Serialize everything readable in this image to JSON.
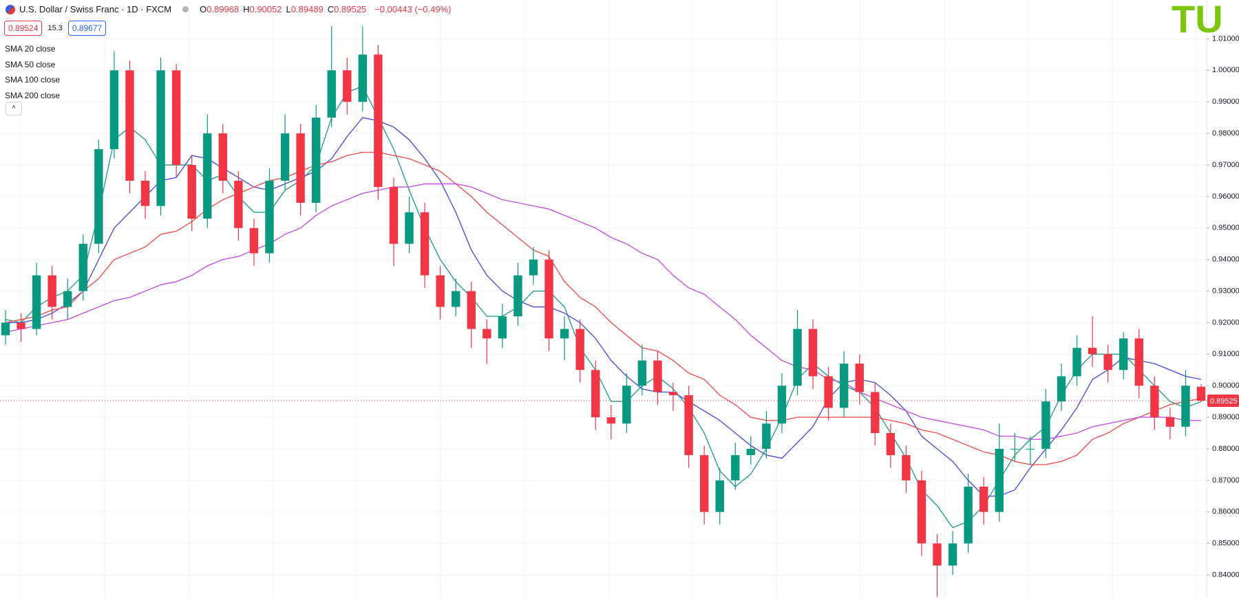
{
  "header": {
    "title": "U.S. Dollar / Swiss Franc · 1D · FXCM",
    "ohlc": [
      {
        "key": "O",
        "value": "0.89968"
      },
      {
        "key": "H",
        "value": "0.90052"
      },
      {
        "key": "L",
        "value": "0.89489"
      },
      {
        "key": "C",
        "value": "0.89525"
      }
    ],
    "change": "−0.00443 (−0.49%)",
    "sell_price": "0.89524",
    "spread": "15.3",
    "buy_price": "0.89677",
    "logo": "TU"
  },
  "chart_data": {
    "type": "candlestick",
    "open": [
      0.916,
      0.92,
      0.918,
      0.935,
      0.925,
      0.93,
      0.945,
      0.975,
      1.0,
      0.965,
      0.957,
      1.0,
      0.97,
      0.953,
      0.98,
      0.965,
      0.95,
      0.942,
      0.965,
      0.98,
      0.958,
      0.985,
      1.0,
      0.99,
      1.005,
      0.963,
      0.945,
      0.955,
      0.935,
      0.925,
      0.93,
      0.918,
      0.915,
      0.922,
      0.935,
      0.94,
      0.915,
      0.918,
      0.905,
      0.89,
      0.888,
      0.9,
      0.908,
      0.898,
      0.897,
      0.878,
      0.86,
      0.87,
      0.878,
      0.88,
      0.888,
      0.9,
      0.918,
      0.903,
      0.893,
      0.907,
      0.898,
      0.885,
      0.878,
      0.87,
      0.85,
      0.843,
      0.85,
      0.868,
      0.86,
      0.88,
      0.88,
      0.88,
      0.895,
      0.903,
      0.912,
      0.91,
      0.905,
      0.915,
      0.9,
      0.89,
      0.887,
      0.89968
    ],
    "high": [
      0.924,
      0.923,
      0.939,
      0.938,
      0.934,
      0.948,
      0.978,
      1.006,
      1.003,
      0.968,
      1.004,
      1.002,
      0.973,
      0.986,
      0.983,
      0.968,
      0.953,
      0.969,
      0.986,
      0.983,
      0.989,
      1.014,
      1.004,
      1.014,
      1.008,
      0.966,
      0.96,
      0.958,
      0.938,
      0.934,
      0.933,
      0.921,
      0.926,
      0.939,
      0.944,
      0.943,
      0.922,
      0.921,
      0.908,
      0.894,
      0.904,
      0.913,
      0.911,
      0.901,
      0.9,
      0.881,
      0.874,
      0.882,
      0.884,
      0.892,
      0.904,
      0.924,
      0.921,
      0.906,
      0.911,
      0.91,
      0.901,
      0.888,
      0.881,
      0.873,
      0.853,
      0.854,
      0.872,
      0.871,
      0.888,
      0.885,
      0.884,
      0.899,
      0.907,
      0.916,
      0.922,
      0.913,
      0.917,
      0.918,
      0.903,
      0.893,
      0.905,
      0.90052
    ],
    "low": [
      0.913,
      0.914,
      0.916,
      0.921,
      0.921,
      0.927,
      0.942,
      0.972,
      0.961,
      0.953,
      0.954,
      0.966,
      0.949,
      0.95,
      0.961,
      0.946,
      0.938,
      0.939,
      0.962,
      0.954,
      0.955,
      0.982,
      0.986,
      0.987,
      0.959,
      0.938,
      0.942,
      0.931,
      0.921,
      0.922,
      0.912,
      0.907,
      0.912,
      0.919,
      0.932,
      0.911,
      0.908,
      0.901,
      0.886,
      0.883,
      0.885,
      0.897,
      0.894,
      0.892,
      0.874,
      0.856,
      0.856,
      0.867,
      0.875,
      0.877,
      0.885,
      0.897,
      0.899,
      0.889,
      0.89,
      0.894,
      0.881,
      0.874,
      0.866,
      0.846,
      0.833,
      0.84,
      0.847,
      0.856,
      0.857,
      0.876,
      0.875,
      0.877,
      0.892,
      0.9,
      0.906,
      0.901,
      0.902,
      0.896,
      0.886,
      0.883,
      0.884,
      0.89489
    ],
    "close": [
      0.92,
      0.918,
      0.935,
      0.925,
      0.93,
      0.945,
      0.975,
      1.0,
      0.965,
      0.957,
      1.0,
      0.97,
      0.953,
      0.98,
      0.965,
      0.95,
      0.942,
      0.965,
      0.98,
      0.958,
      0.985,
      1.0,
      0.99,
      1.005,
      0.963,
      0.945,
      0.955,
      0.935,
      0.925,
      0.93,
      0.918,
      0.915,
      0.922,
      0.935,
      0.94,
      0.915,
      0.918,
      0.905,
      0.89,
      0.888,
      0.9,
      0.908,
      0.898,
      0.897,
      0.878,
      0.86,
      0.87,
      0.878,
      0.88,
      0.888,
      0.9,
      0.918,
      0.903,
      0.893,
      0.907,
      0.898,
      0.885,
      0.878,
      0.87,
      0.85,
      0.843,
      0.85,
      0.868,
      0.86,
      0.88,
      0.88,
      0.88,
      0.895,
      0.903,
      0.912,
      0.91,
      0.905,
      0.915,
      0.9,
      0.89,
      0.887,
      0.9,
      0.89525
    ],
    "up_color": "#089981",
    "down_color": "#f23645",
    "series": [
      {
        "name": "SMA 20 close",
        "color": "#26a08f",
        "values": [
          0.921,
          0.92,
          0.925,
          0.928,
          0.93,
          0.935,
          0.955,
          0.978,
          0.982,
          0.978,
          0.97,
          0.97,
          0.97,
          0.965,
          0.967,
          0.96,
          0.955,
          0.955,
          0.962,
          0.965,
          0.97,
          0.985,
          0.993,
          0.995,
          0.985,
          0.975,
          0.962,
          0.95,
          0.94,
          0.933,
          0.928,
          0.922,
          0.922,
          0.925,
          0.93,
          0.93,
          0.925,
          0.912,
          0.905,
          0.895,
          0.895,
          0.9,
          0.903,
          0.899,
          0.893,
          0.885,
          0.873,
          0.868,
          0.872,
          0.88,
          0.89,
          0.902,
          0.907,
          0.903,
          0.9,
          0.898,
          0.893,
          0.885,
          0.877,
          0.867,
          0.862,
          0.855,
          0.857,
          0.862,
          0.87,
          0.878,
          0.883,
          0.887,
          0.897,
          0.905,
          0.91,
          0.91,
          0.91,
          0.905,
          0.9,
          0.895,
          0.893,
          0.895
        ]
      },
      {
        "name": "SMA 50 close",
        "color": "#5050e0",
        "values": [
          0.92,
          0.92,
          0.921,
          0.923,
          0.926,
          0.93,
          0.94,
          0.95,
          0.955,
          0.96,
          0.965,
          0.966,
          0.973,
          0.972,
          0.969,
          0.966,
          0.963,
          0.962,
          0.964,
          0.966,
          0.968,
          0.972,
          0.979,
          0.985,
          0.984,
          0.982,
          0.978,
          0.972,
          0.965,
          0.955,
          0.943,
          0.935,
          0.93,
          0.927,
          0.925,
          0.925,
          0.923,
          0.92,
          0.915,
          0.908,
          0.903,
          0.899,
          0.898,
          0.898,
          0.895,
          0.892,
          0.889,
          0.885,
          0.881,
          0.878,
          0.877,
          0.882,
          0.887,
          0.896,
          0.901,
          0.902,
          0.901,
          0.897,
          0.892,
          0.884,
          0.88,
          0.876,
          0.87,
          0.865,
          0.865,
          0.867,
          0.874,
          0.88,
          0.886,
          0.893,
          0.902,
          0.905,
          0.909,
          0.908,
          0.907,
          0.905,
          0.903,
          0.902
        ]
      },
      {
        "name": "SMA 100 close",
        "color": "#ef5350",
        "values": [
          0.92,
          0.921,
          0.922,
          0.924,
          0.925,
          0.93,
          0.934,
          0.94,
          0.942,
          0.944,
          0.948,
          0.949,
          0.952,
          0.956,
          0.959,
          0.961,
          0.963,
          0.965,
          0.966,
          0.968,
          0.97,
          0.971,
          0.973,
          0.974,
          0.974,
          0.973,
          0.972,
          0.97,
          0.968,
          0.964,
          0.96,
          0.955,
          0.951,
          0.947,
          0.943,
          0.941,
          0.933,
          0.928,
          0.925,
          0.92,
          0.916,
          0.912,
          0.911,
          0.908,
          0.904,
          0.902,
          0.897,
          0.894,
          0.89,
          0.889,
          0.889,
          0.89,
          0.89,
          0.89,
          0.89,
          0.89,
          0.89,
          0.889,
          0.888,
          0.886,
          0.885,
          0.883,
          0.881,
          0.879,
          0.878,
          0.876,
          0.875,
          0.875,
          0.876,
          0.878,
          0.883,
          0.885,
          0.888,
          0.89,
          0.892,
          0.894,
          0.895,
          0.896
        ]
      },
      {
        "name": "SMA 200 close",
        "color": "#c651e8",
        "values": [
          0.917,
          0.918,
          0.919,
          0.92,
          0.921,
          0.923,
          0.925,
          0.927,
          0.928,
          0.93,
          0.932,
          0.933,
          0.935,
          0.938,
          0.94,
          0.941,
          0.943,
          0.945,
          0.948,
          0.95,
          0.954,
          0.957,
          0.959,
          0.961,
          0.962,
          0.963,
          0.963,
          0.964,
          0.964,
          0.964,
          0.963,
          0.961,
          0.959,
          0.958,
          0.957,
          0.956,
          0.954,
          0.952,
          0.95,
          0.947,
          0.945,
          0.942,
          0.94,
          0.935,
          0.931,
          0.929,
          0.925,
          0.921,
          0.916,
          0.912,
          0.908,
          0.906,
          0.905,
          0.902,
          0.901,
          0.898,
          0.896,
          0.894,
          0.892,
          0.89,
          0.889,
          0.888,
          0.887,
          0.886,
          0.884,
          0.884,
          0.883,
          0.883,
          0.884,
          0.885,
          0.887,
          0.888,
          0.889,
          0.89,
          0.89,
          0.89,
          0.889,
          0.889
        ]
      }
    ],
    "ylim": [
      0.8327,
      1.0223
    ],
    "yticks": [
      {
        "value": 0.84,
        "label": "0.84000"
      },
      {
        "value": 0.85,
        "label": "0.85000"
      },
      {
        "value": 0.86,
        "label": "0.86000"
      },
      {
        "value": 0.87,
        "label": "0.87000"
      },
      {
        "value": 0.88,
        "label": "0.88000"
      },
      {
        "value": 0.89,
        "label": "0.89000"
      },
      {
        "value": 0.9,
        "label": "0.90000"
      },
      {
        "value": 0.91,
        "label": "0.91000"
      },
      {
        "value": 0.92,
        "label": "0.92000"
      },
      {
        "value": 0.93,
        "label": "0.93000"
      },
      {
        "value": 0.94,
        "label": "0.94000"
      },
      {
        "value": 0.95,
        "label": "0.95000"
      },
      {
        "value": 0.96,
        "label": "0.96000"
      },
      {
        "value": 0.97,
        "label": "0.97000"
      },
      {
        "value": 0.98,
        "label": "0.98000"
      },
      {
        "value": 0.99,
        "label": "0.99000"
      },
      {
        "value": 1.0,
        "label": "1.00000"
      },
      {
        "value": 1.01,
        "label": "1.01000"
      }
    ],
    "grid": true,
    "last_price": {
      "value": 0.89525,
      "label": "0.89525"
    }
  }
}
